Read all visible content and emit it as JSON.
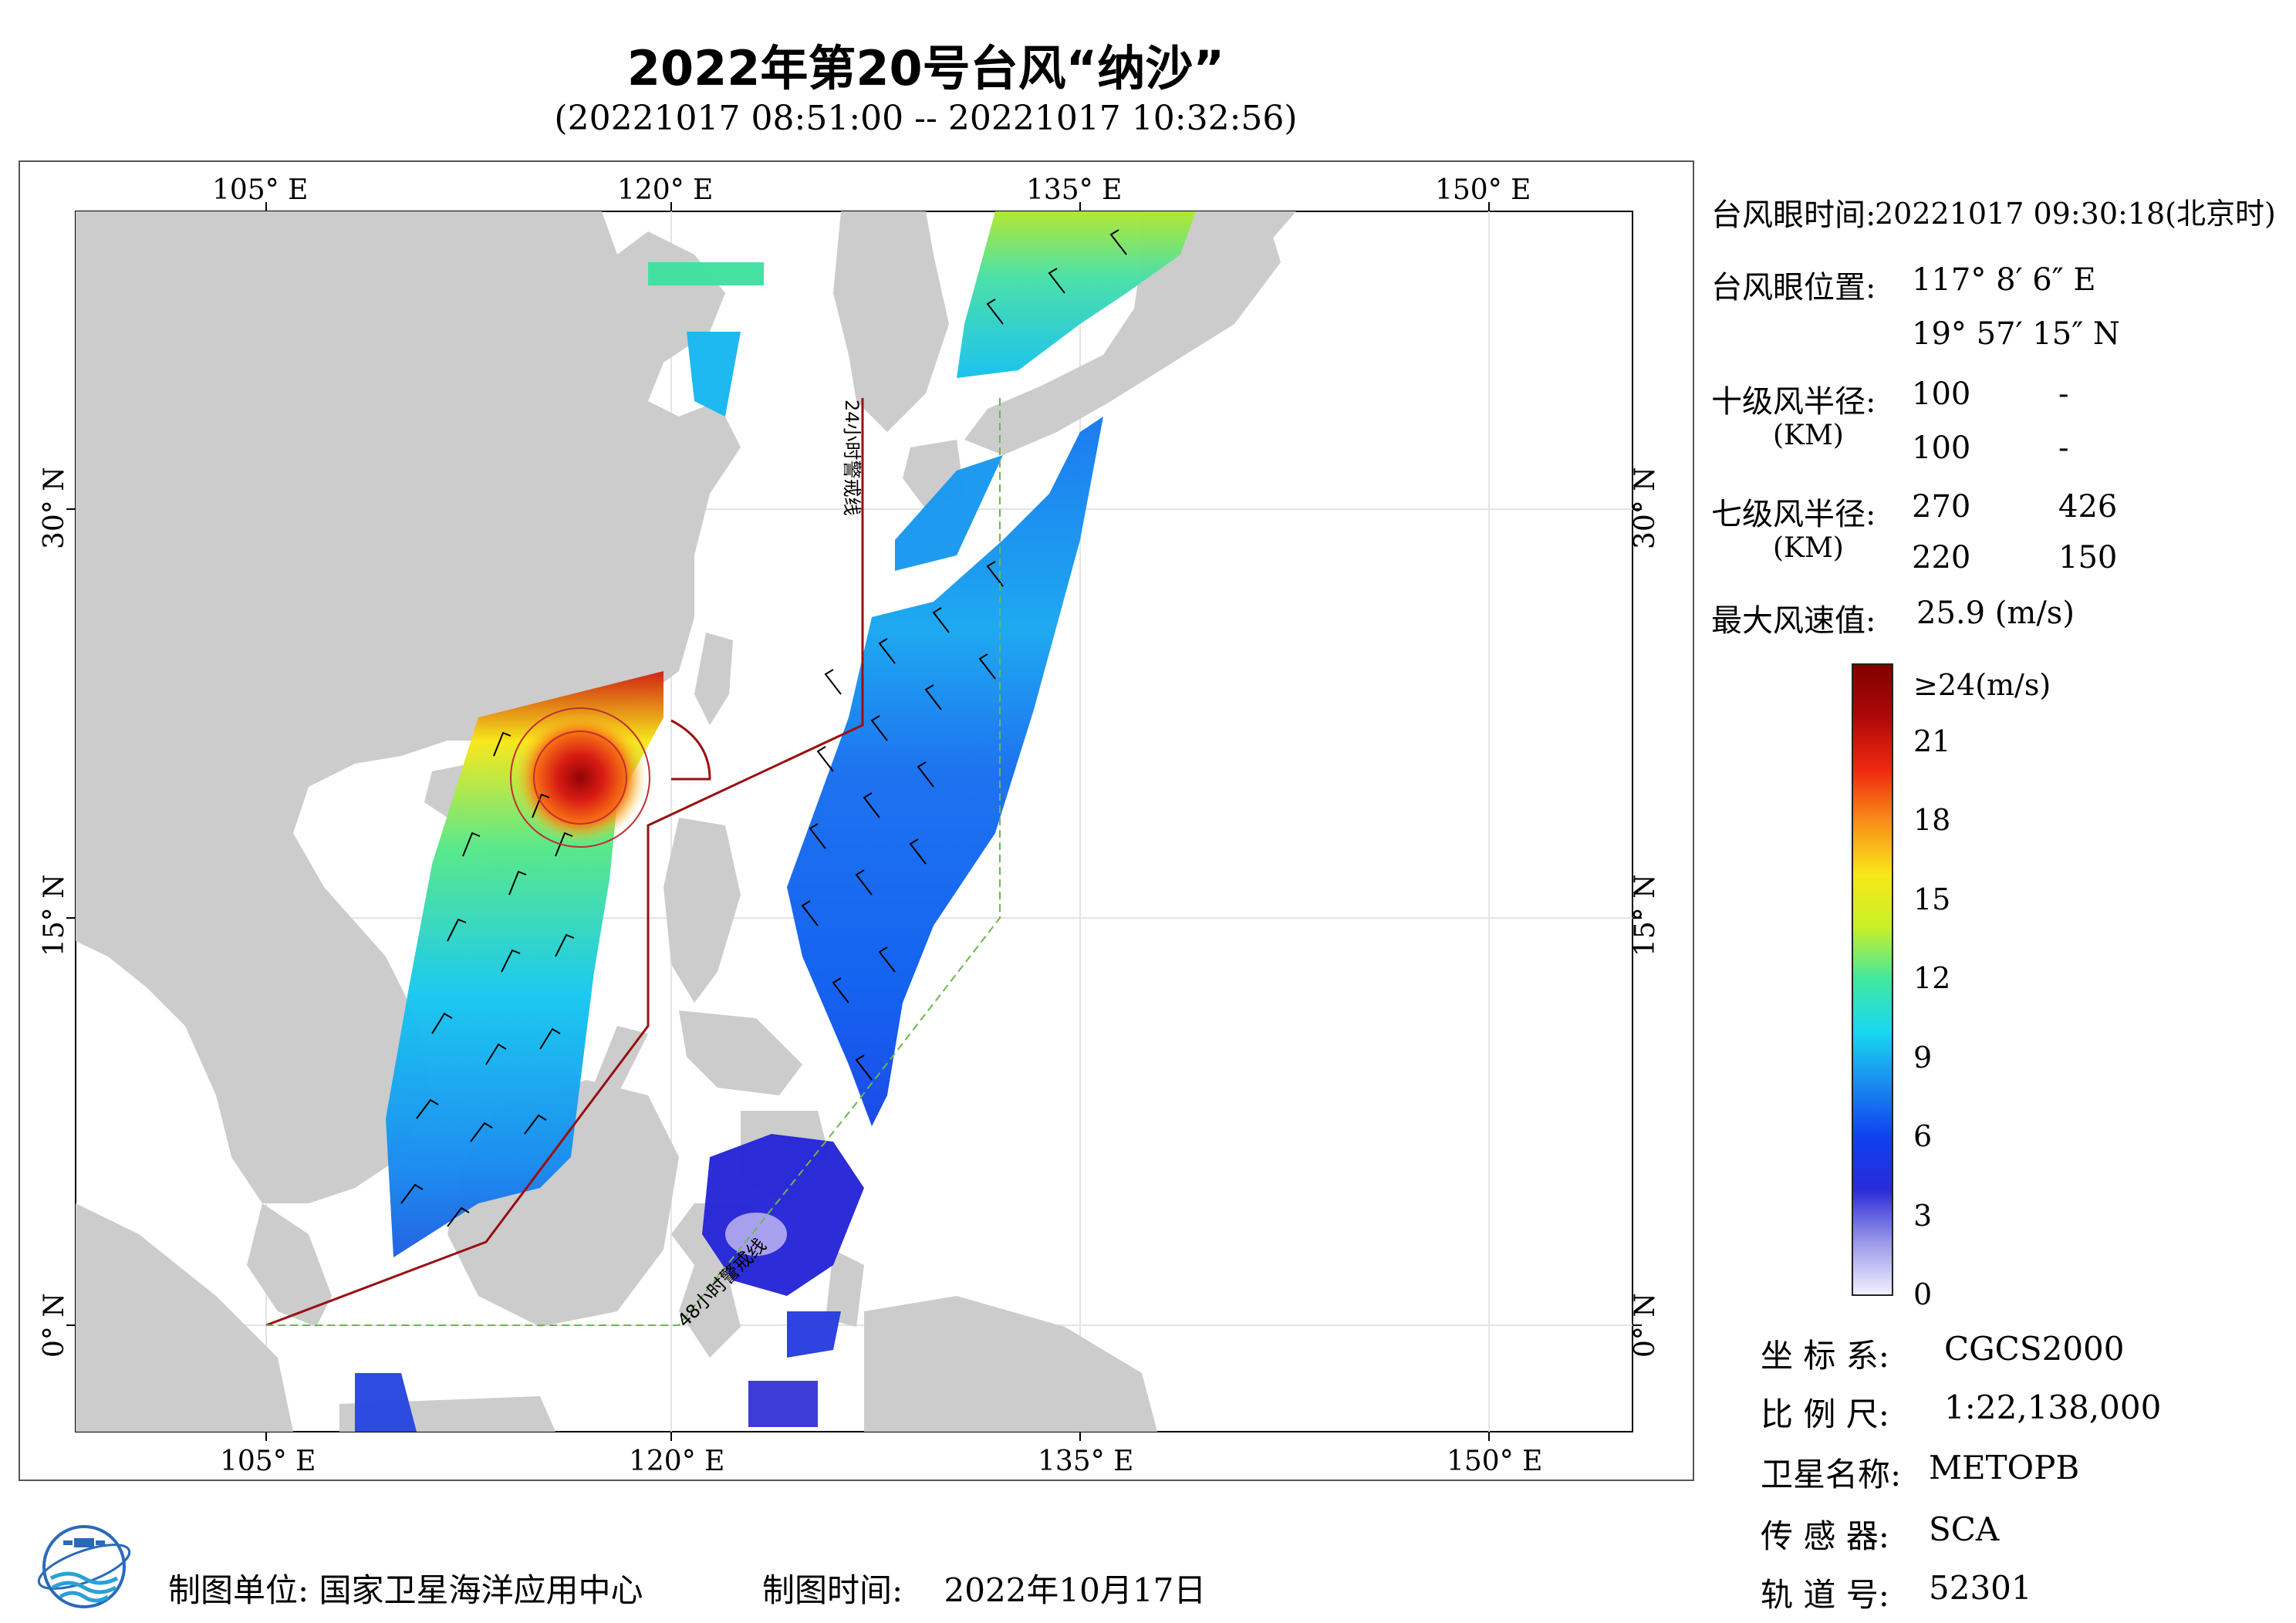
{
  "title": "2022年第20号台风“纳沙”",
  "subtitle": "(20221017 08:51:00 -- 20221017 10:32:56)",
  "map": {
    "lon_top": [
      "105° E",
      "120° E",
      "135° E",
      "150° E"
    ],
    "lon_bottom": [
      "105° E",
      "120° E",
      "135° E",
      "150° E"
    ],
    "lat_left": [
      "30° N",
      "15° N",
      "0° N"
    ],
    "lat_right": [
      "30° N",
      "15° N",
      "0° N"
    ],
    "warning_24h": "24小时警戒线",
    "warning_48h": "48小时警戒线"
  },
  "info": {
    "eye_time_label": "台风眼时间:",
    "eye_time_value": "20221017 09:30:18(北京时)",
    "eye_pos_label": "台风眼位置:",
    "eye_lon": "117° 8′ 6″ E",
    "eye_lat": "19° 57′ 15″ N",
    "r10_label": "十级风半径:",
    "r10_unit": "(KM)",
    "r10_row1": [
      "100",
      "-"
    ],
    "r10_row2": [
      "100",
      "-"
    ],
    "r7_label": "七级风半径:",
    "r7_unit": "(KM)",
    "r7_row1": [
      "270",
      "426"
    ],
    "r7_row2": [
      "220",
      "150"
    ],
    "max_label": "最大风速值:",
    "max_value": "25.9 (m/s)"
  },
  "colorbar": {
    "unit_top": "≥24(m/s)",
    "ticks": [
      "21",
      "18",
      "15",
      "12",
      "9",
      "6",
      "3",
      "0"
    ],
    "colors": [
      "#f0f0ff",
      "#9a98e8",
      "#2a2ad8",
      "#1040f0",
      "#1a8af0",
      "#18d8f0",
      "#40e8a0",
      "#c8f028",
      "#f8e818",
      "#f89018",
      "#f02810",
      "#b00808",
      "#800000"
    ]
  },
  "meta": {
    "coord_label": "坐 标 系:",
    "coord_value": "CGCS2000",
    "scale_label": "比 例 尺:",
    "scale_value": "1:22,138,000",
    "sat_label": "卫星名称:",
    "sat_value": "METOPB",
    "sensor_label": "传 感 器:",
    "sensor_value": "SCA",
    "orbit_label": "轨 道 号:",
    "orbit_value": "52301"
  },
  "footer": {
    "unit_label": "制图单位:",
    "unit_value": "国家卫星海洋应用中心",
    "time_label": "制图时间:",
    "time_value": "2022年10月17日"
  },
  "typhoon_eye": {
    "lon": 117.135,
    "lat": 19.954
  }
}
